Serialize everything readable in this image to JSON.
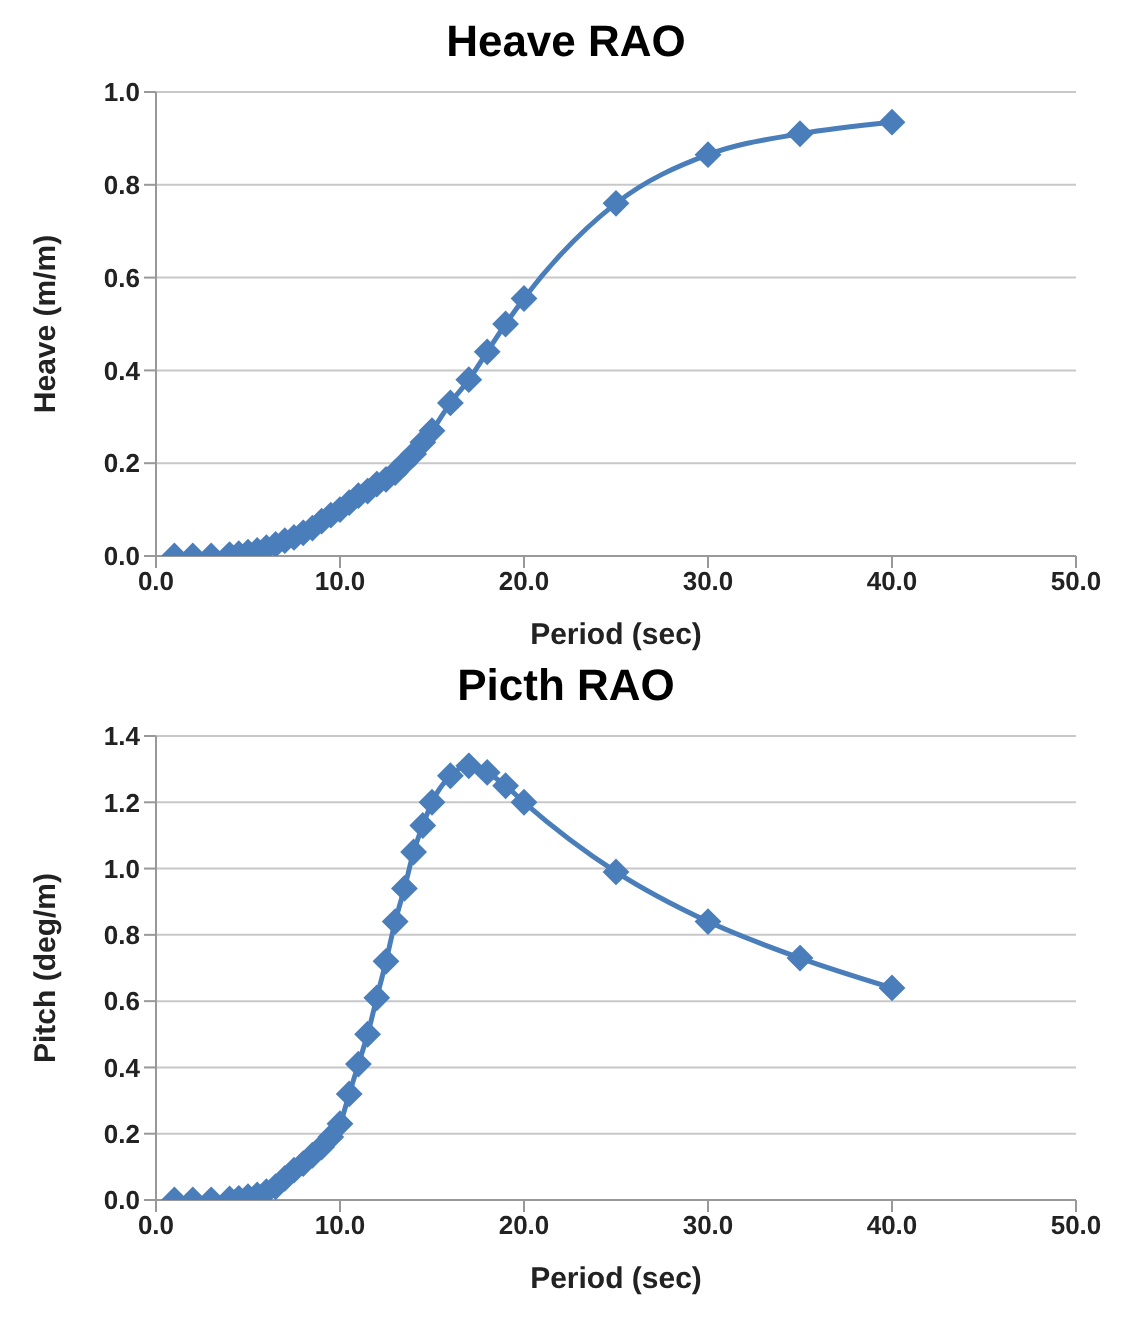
{
  "chart_data": [
    {
      "type": "line",
      "title": "Heave RAO",
      "xlabel": "Period (sec)",
      "ylabel": "Heave (m/m)",
      "marker": "diamond",
      "grid": "y",
      "x": [
        1,
        2,
        3,
        4,
        4.5,
        5,
        5.5,
        6,
        6.5,
        7,
        7.5,
        8,
        8.5,
        9,
        9.5,
        10,
        10.5,
        11,
        11.5,
        12,
        12.5,
        13,
        13.5,
        14,
        14.5,
        15,
        16,
        17,
        18,
        19,
        20,
        25,
        30,
        35,
        40
      ],
      "series": [
        {
          "color": "#4a7ebb",
          "values": [
            0,
            0,
            0,
            0.003,
            0.005,
            0.008,
            0.012,
            0.018,
            0.025,
            0.033,
            0.04,
            0.05,
            0.06,
            0.075,
            0.088,
            0.1,
            0.115,
            0.13,
            0.14,
            0.155,
            0.165,
            0.18,
            0.2,
            0.22,
            0.245,
            0.27,
            0.33,
            0.38,
            0.44,
            0.5,
            0.555,
            0.76,
            0.865,
            0.91,
            0.935
          ]
        }
      ],
      "xlim": [
        0,
        50
      ],
      "xticks": [
        {
          "value": 0,
          "label": "0.0"
        },
        {
          "value": 10,
          "label": "10.0"
        },
        {
          "value": 20,
          "label": "20.0"
        },
        {
          "value": 30,
          "label": "30.0"
        },
        {
          "value": 40,
          "label": "40.0"
        },
        {
          "value": 50,
          "label": "50.0"
        }
      ],
      "ylim": [
        0,
        1
      ],
      "yticks": [
        {
          "value": 0,
          "label": "0.0"
        },
        {
          "value": 0.2,
          "label": "0.2"
        },
        {
          "value": 0.4,
          "label": "0.4"
        },
        {
          "value": 0.6,
          "label": "0.6"
        },
        {
          "value": 0.8,
          "label": "0.8"
        },
        {
          "value": 1,
          "label": "1.0"
        }
      ]
    },
    {
      "type": "line",
      "title": "Picth RAO",
      "xlabel": "Period (sec)",
      "ylabel": "Pitch (deg/m)",
      "marker": "diamond",
      "grid": "y",
      "x": [
        1,
        2,
        3,
        4,
        4.5,
        5,
        5.5,
        6,
        6.5,
        7,
        7.5,
        8,
        8.5,
        9,
        9.5,
        10,
        10.5,
        11,
        11.5,
        12,
        12.5,
        13,
        13.5,
        14,
        14.5,
        15,
        16,
        17,
        18,
        19,
        20,
        25,
        30,
        35,
        40
      ],
      "series": [
        {
          "color": "#4a7ebb",
          "values": [
            0,
            0,
            0,
            0.003,
            0.005,
            0.01,
            0.015,
            0.025,
            0.04,
            0.065,
            0.09,
            0.11,
            0.135,
            0.16,
            0.19,
            0.23,
            0.32,
            0.41,
            0.5,
            0.61,
            0.72,
            0.84,
            0.94,
            1.05,
            1.13,
            1.2,
            1.28,
            1.31,
            1.29,
            1.25,
            1.2,
            0.99,
            0.84,
            0.73,
            0.64
          ]
        }
      ],
      "xlim": [
        0,
        50
      ],
      "xticks": [
        {
          "value": 0,
          "label": "0.0"
        },
        {
          "value": 10,
          "label": "10.0"
        },
        {
          "value": 20,
          "label": "20.0"
        },
        {
          "value": 30,
          "label": "30.0"
        },
        {
          "value": 40,
          "label": "40.0"
        },
        {
          "value": 50,
          "label": "50.0"
        }
      ],
      "ylim": [
        0,
        1.4
      ],
      "yticks": [
        {
          "value": 0,
          "label": "0.0"
        },
        {
          "value": 0.2,
          "label": "0.2"
        },
        {
          "value": 0.4,
          "label": "0.4"
        },
        {
          "value": 0.6,
          "label": "0.6"
        },
        {
          "value": 0.8,
          "label": "0.8"
        },
        {
          "value": 1,
          "label": "1.0"
        },
        {
          "value": 1.2,
          "label": "1.2"
        },
        {
          "value": 1.4,
          "label": "1.4"
        }
      ]
    }
  ]
}
